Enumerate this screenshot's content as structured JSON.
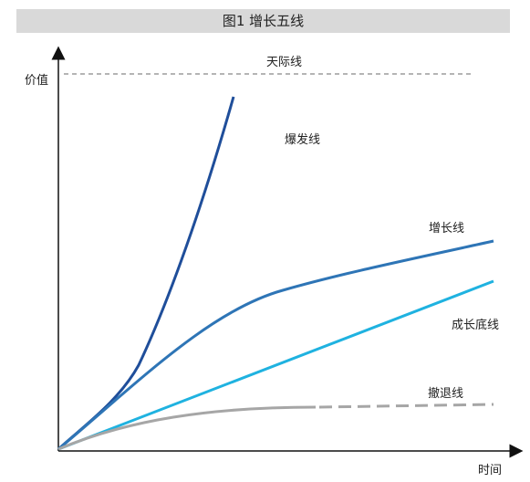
{
  "title": "图1  增长五线",
  "axes": {
    "y_label": "价值",
    "x_label": "时间"
  },
  "lines": {
    "ceiling": "天际线",
    "explosive": "爆发线",
    "growth": "增长线",
    "growth_floor": "成长底线",
    "retreat": "撤退线"
  },
  "colors": {
    "ceiling": "#888888",
    "explosive": "#1f4e9a",
    "growth": "#2e75b6",
    "growth_floor": "#1fb2e0",
    "retreat": "#a6a6a6"
  }
}
